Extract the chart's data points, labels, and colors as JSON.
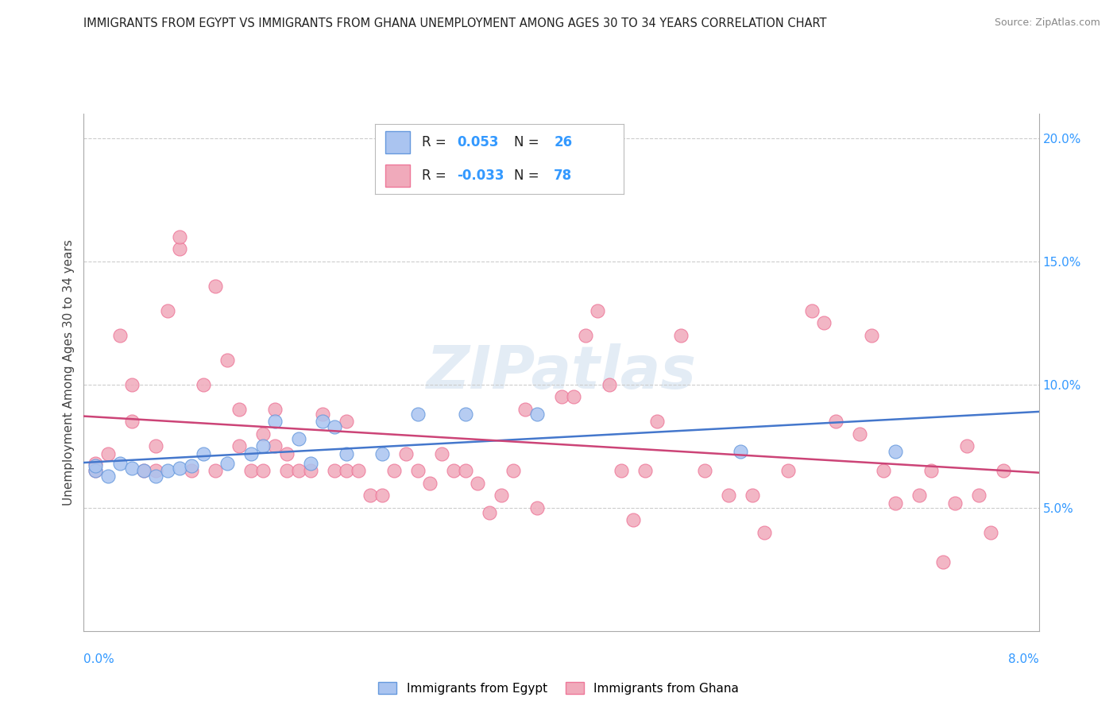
{
  "title": "IMMIGRANTS FROM EGYPT VS IMMIGRANTS FROM GHANA UNEMPLOYMENT AMONG AGES 30 TO 34 YEARS CORRELATION CHART",
  "source": "Source: ZipAtlas.com",
  "ylabel": "Unemployment Among Ages 30 to 34 years",
  "color_egypt": "#aac4f0",
  "color_ghana": "#f0aabb",
  "color_egypt_line": "#4477cc",
  "color_ghana_line": "#cc4477",
  "color_egypt_edge": "#6699dd",
  "color_ghana_edge": "#ee7799",
  "watermark": "ZIPatlas",
  "legend_label_egypt": "Immigrants from Egypt",
  "legend_label_ghana": "Immigrants from Ghana",
  "egypt_x": [
    0.001,
    0.001,
    0.002,
    0.003,
    0.004,
    0.005,
    0.006,
    0.007,
    0.008,
    0.009,
    0.01,
    0.012,
    0.014,
    0.015,
    0.016,
    0.018,
    0.019,
    0.02,
    0.021,
    0.022,
    0.025,
    0.028,
    0.032,
    0.038,
    0.055,
    0.068
  ],
  "egypt_y": [
    0.065,
    0.067,
    0.063,
    0.068,
    0.066,
    0.065,
    0.063,
    0.065,
    0.066,
    0.067,
    0.072,
    0.068,
    0.072,
    0.075,
    0.085,
    0.078,
    0.068,
    0.085,
    0.083,
    0.072,
    0.072,
    0.088,
    0.088,
    0.088,
    0.073,
    0.073
  ],
  "ghana_x": [
    0.001,
    0.001,
    0.002,
    0.003,
    0.004,
    0.004,
    0.005,
    0.006,
    0.006,
    0.007,
    0.008,
    0.008,
    0.009,
    0.01,
    0.011,
    0.011,
    0.012,
    0.013,
    0.013,
    0.014,
    0.015,
    0.015,
    0.016,
    0.016,
    0.017,
    0.017,
    0.018,
    0.019,
    0.02,
    0.021,
    0.022,
    0.022,
    0.023,
    0.024,
    0.025,
    0.026,
    0.027,
    0.028,
    0.029,
    0.03,
    0.031,
    0.032,
    0.033,
    0.034,
    0.035,
    0.036,
    0.037,
    0.038,
    0.04,
    0.041,
    0.042,
    0.043,
    0.044,
    0.045,
    0.046,
    0.047,
    0.048,
    0.05,
    0.052,
    0.054,
    0.056,
    0.057,
    0.059,
    0.061,
    0.062,
    0.063,
    0.065,
    0.066,
    0.067,
    0.068,
    0.07,
    0.071,
    0.072,
    0.073,
    0.074,
    0.075,
    0.076,
    0.077
  ],
  "ghana_y": [
    0.065,
    0.068,
    0.072,
    0.12,
    0.085,
    0.1,
    0.065,
    0.065,
    0.075,
    0.13,
    0.155,
    0.16,
    0.065,
    0.1,
    0.065,
    0.14,
    0.11,
    0.075,
    0.09,
    0.065,
    0.08,
    0.065,
    0.075,
    0.09,
    0.072,
    0.065,
    0.065,
    0.065,
    0.088,
    0.065,
    0.085,
    0.065,
    0.065,
    0.055,
    0.055,
    0.065,
    0.072,
    0.065,
    0.06,
    0.072,
    0.065,
    0.065,
    0.06,
    0.048,
    0.055,
    0.065,
    0.09,
    0.05,
    0.095,
    0.095,
    0.12,
    0.13,
    0.1,
    0.065,
    0.045,
    0.065,
    0.085,
    0.12,
    0.065,
    0.055,
    0.055,
    0.04,
    0.065,
    0.13,
    0.125,
    0.085,
    0.08,
    0.12,
    0.065,
    0.052,
    0.055,
    0.065,
    0.028,
    0.052,
    0.075,
    0.055,
    0.04,
    0.065
  ],
  "xlim": [
    0.0,
    0.08
  ],
  "ylim": [
    0.0,
    0.21
  ],
  "yticks": [
    0.05,
    0.1,
    0.15,
    0.2
  ],
  "ytick_labels": [
    "5.0%",
    "10.0%",
    "15.0%",
    "20.0%"
  ],
  "grid_color": "#cccccc",
  "spine_color": "#aaaaaa",
  "tick_color": "#3399ff"
}
